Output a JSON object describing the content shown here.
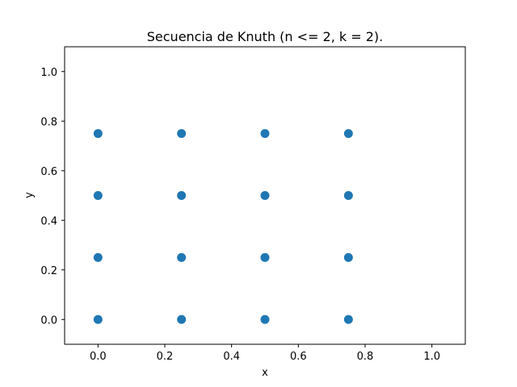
{
  "chart_data": {
    "type": "scatter",
    "title": "Secuencia de Knuth (n <= 2, k = 2).",
    "xlabel": "x",
    "ylabel": "y",
    "xlim": [
      -0.1,
      1.1
    ],
    "ylim": [
      -0.1,
      1.1
    ],
    "xticks": [
      0.0,
      0.2,
      0.4,
      0.6,
      0.8,
      1.0
    ],
    "yticks": [
      0.0,
      0.2,
      0.4,
      0.6,
      0.8,
      1.0
    ],
    "xtick_labels": [
      "0.0",
      "0.2",
      "0.4",
      "0.6",
      "0.8",
      "1.0"
    ],
    "ytick_labels": [
      "0.0",
      "0.2",
      "0.4",
      "0.6",
      "0.8",
      "1.0"
    ],
    "grid": false,
    "marker_color": "#1f77b4",
    "points": [
      [
        0.0,
        0.0
      ],
      [
        0.0,
        0.25
      ],
      [
        0.0,
        0.5
      ],
      [
        0.0,
        0.75
      ],
      [
        0.25,
        0.0
      ],
      [
        0.25,
        0.25
      ],
      [
        0.25,
        0.5
      ],
      [
        0.25,
        0.75
      ],
      [
        0.5,
        0.0
      ],
      [
        0.5,
        0.25
      ],
      [
        0.5,
        0.5
      ],
      [
        0.5,
        0.75
      ],
      [
        0.75,
        0.0
      ],
      [
        0.75,
        0.25
      ],
      [
        0.75,
        0.5
      ],
      [
        0.75,
        0.75
      ]
    ]
  }
}
